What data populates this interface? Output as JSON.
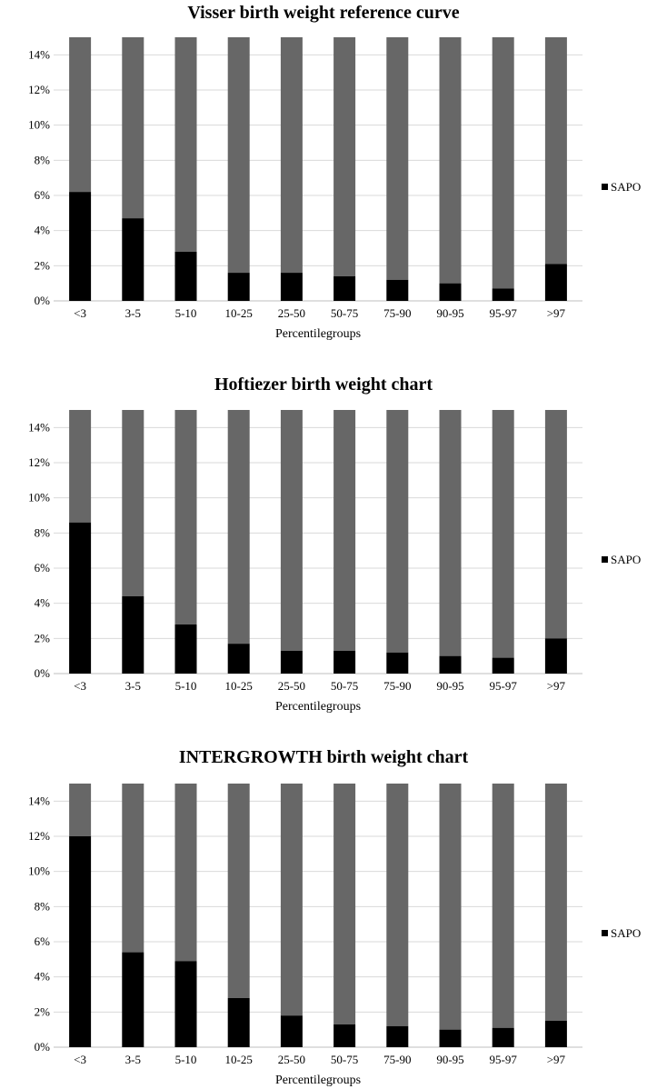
{
  "colors": {
    "sapo": "#000000",
    "rest": "#676767",
    "grid": "#d9d9d9",
    "axis": "#bfbfbf"
  },
  "chart_data": [
    {
      "type": "bar",
      "stacked": true,
      "title": "Visser birth weight reference curve",
      "xlabel": "Percentilegroups",
      "ylabel": "",
      "ylim": [
        0,
        15
      ],
      "yticks": [
        "0%",
        "2%",
        "4%",
        "6%",
        "8%",
        "10%",
        "12%",
        "14%"
      ],
      "categories": [
        "<3",
        "3-5",
        "5-10",
        "10-25",
        "25-50",
        "50-75",
        "75-90",
        "90-95",
        "95-97",
        ">97"
      ],
      "series": [
        {
          "name": "SAPO",
          "values": [
            6.2,
            4.7,
            2.8,
            1.6,
            1.6,
            1.4,
            1.2,
            1.0,
            0.7,
            2.1
          ]
        }
      ],
      "legend": {
        "entries": [
          "SAPO"
        ],
        "position": "right"
      },
      "grid": true
    },
    {
      "type": "bar",
      "stacked": true,
      "title": "Hoftiezer birth weight chart",
      "xlabel": "Percentilegroups",
      "ylabel": "",
      "ylim": [
        0,
        15
      ],
      "yticks": [
        "0%",
        "2%",
        "4%",
        "6%",
        "8%",
        "10%",
        "12%",
        "14%"
      ],
      "categories": [
        "<3",
        "3-5",
        "5-10",
        "10-25",
        "25-50",
        "50-75",
        "75-90",
        "90-95",
        "95-97",
        ">97"
      ],
      "series": [
        {
          "name": "SAPO",
          "values": [
            8.6,
            4.4,
            2.8,
            1.7,
            1.3,
            1.3,
            1.2,
            1.0,
            0.9,
            2.0
          ]
        }
      ],
      "legend": {
        "entries": [
          "SAPO"
        ],
        "position": "right"
      },
      "grid": true
    },
    {
      "type": "bar",
      "stacked": true,
      "title": "INTERGROWTH birth weight chart",
      "xlabel": "Percentilegroups",
      "ylabel": "",
      "ylim": [
        0,
        15
      ],
      "yticks": [
        "0%",
        "2%",
        "4%",
        "6%",
        "8%",
        "10%",
        "12%",
        "14%"
      ],
      "categories": [
        "<3",
        "3-5",
        "5-10",
        "10-25",
        "25-50",
        "50-75",
        "75-90",
        "90-95",
        "95-97",
        ">97"
      ],
      "series": [
        {
          "name": "SAPO",
          "values": [
            12.0,
            5.4,
            4.9,
            2.8,
            1.8,
            1.3,
            1.2,
            1.0,
            1.1,
            1.5
          ]
        }
      ],
      "legend": {
        "entries": [
          "SAPO"
        ],
        "position": "right"
      },
      "grid": true
    }
  ]
}
